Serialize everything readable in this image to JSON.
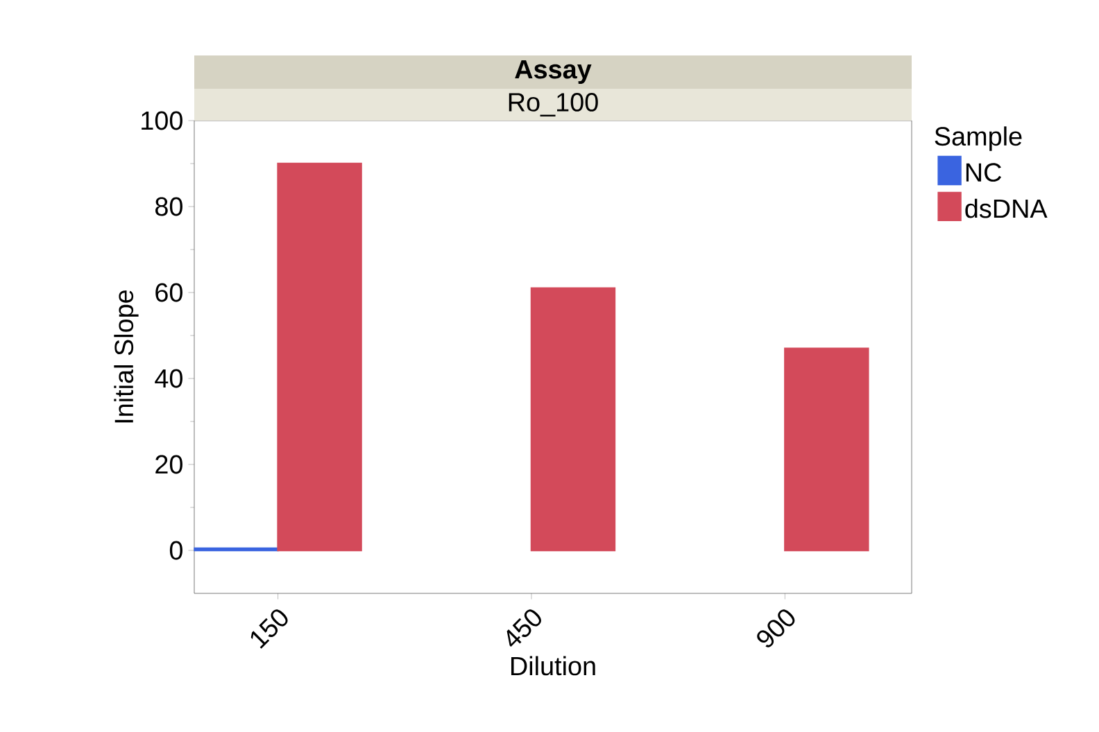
{
  "chart_data": {
    "type": "bar",
    "title": "Assay",
    "subtitle": "Ro_100",
    "xlabel": "Dilution",
    "ylabel": "Initial Slope",
    "legend_title": "Sample",
    "categories": [
      "150",
      "450",
      "900"
    ],
    "series": [
      {
        "name": "NC",
        "color": "#3a64e0",
        "values": [
          0.5,
          null,
          null
        ]
      },
      {
        "name": "dsDNA",
        "color": "#d34a5a",
        "values": [
          90,
          61,
          47
        ]
      }
    ],
    "ylim": [
      -10,
      100
    ],
    "yticks": [
      0,
      20,
      40,
      60,
      80,
      100
    ],
    "grid": false,
    "legend": "top right"
  }
}
